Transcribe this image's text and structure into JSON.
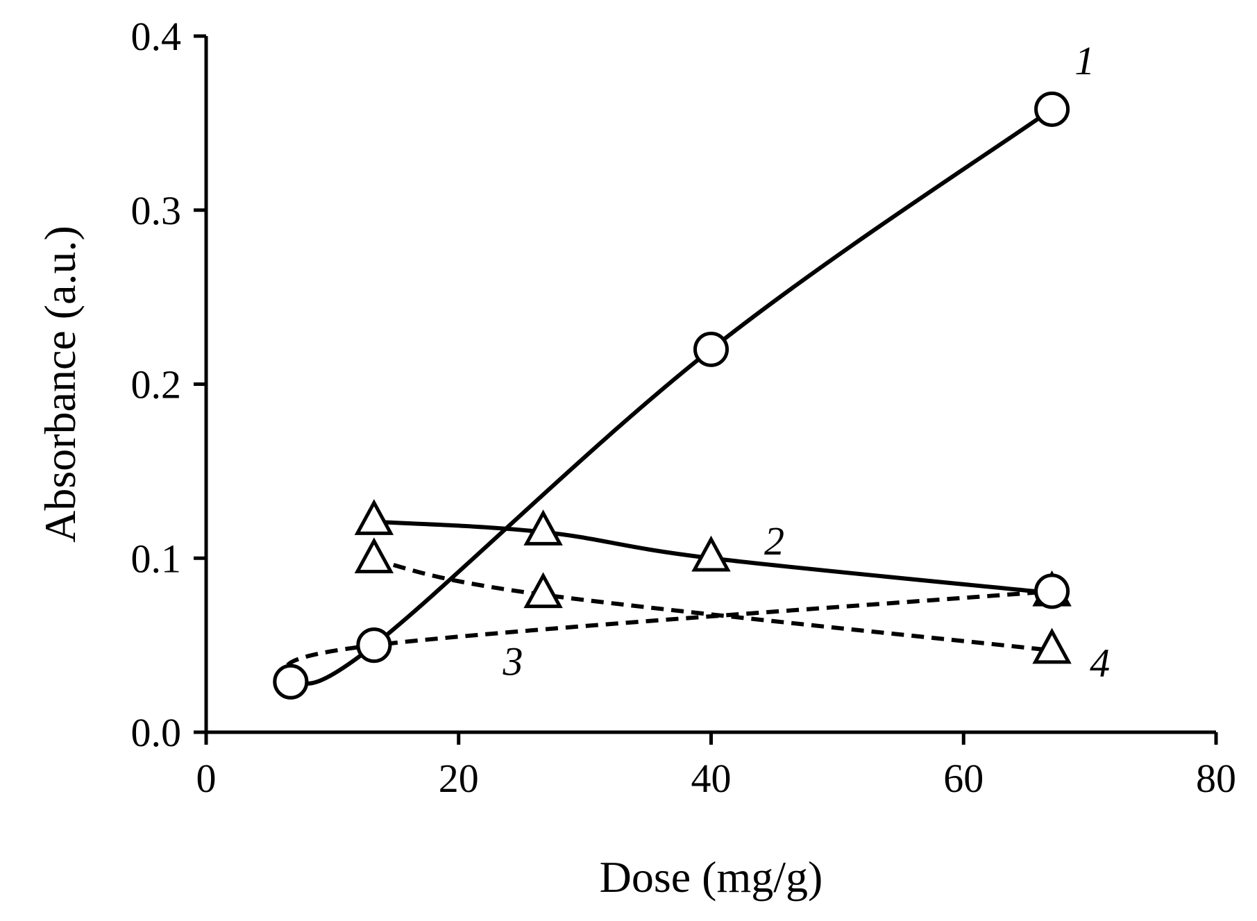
{
  "chart_data": {
    "type": "line",
    "title": "",
    "xlabel": "Dose (mg/g)",
    "ylabel": "Absorbance (a.u.)",
    "xlim": [
      0,
      80
    ],
    "ylim": [
      0,
      0.4
    ],
    "xticks": [
      0,
      20,
      40,
      60,
      80
    ],
    "xtick_labels": [
      "0",
      "20",
      "40",
      "60",
      "80"
    ],
    "yticks": [
      0,
      0.1,
      0.2,
      0.3,
      0.4
    ],
    "ytick_labels": [
      "0.0",
      "0.1",
      "0.2",
      "0.3",
      "0.4"
    ],
    "grid": false,
    "legend": "none",
    "series": [
      {
        "name": "1",
        "label": "1",
        "marker": "circle",
        "line": "solid",
        "x": [
          6.7,
          13.3,
          40,
          67
        ],
        "y": [
          0.029,
          0.05,
          0.22,
          0.358
        ]
      },
      {
        "name": "2",
        "label": "2",
        "marker": "triangle",
        "line": "solid",
        "x": [
          13.3,
          26.7,
          40,
          67
        ],
        "y": [
          0.121,
          0.115,
          0.1,
          0.08
        ]
      },
      {
        "name": "3",
        "label": "3",
        "marker": "circle",
        "line": "dashed",
        "x": [
          6.7,
          13.3,
          67
        ],
        "y": [
          0.029,
          0.05,
          0.081
        ]
      },
      {
        "name": "4",
        "label": "4",
        "marker": "triangle",
        "line": "dashed",
        "x": [
          13.3,
          26.7,
          67
        ],
        "y": [
          0.099,
          0.079,
          0.047
        ]
      }
    ]
  }
}
